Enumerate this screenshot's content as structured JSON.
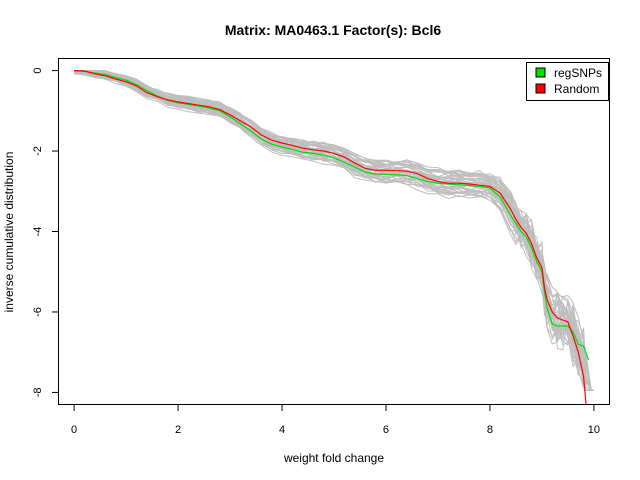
{
  "chart_data": {
    "type": "line",
    "title": "Matrix: MA0463.1 Factor(s): Bcl6",
    "xlabel": "weight fold change",
    "ylabel": "inverse cumulative distribution",
    "xlim": [
      -0.3,
      10.3
    ],
    "ylim": [
      -8.3,
      0.3
    ],
    "x_ticks": [
      0,
      2,
      4,
      6,
      8,
      10
    ],
    "y_ticks": [
      0,
      -2,
      -4,
      -6,
      -8
    ],
    "grid": false,
    "legend_position": "top-right",
    "colors": {
      "regSNPs": "#00dd00",
      "Random": "#ff0000",
      "background": "#bebebe"
    },
    "series": [
      {
        "name": "regSNPs",
        "color": "#00dd00",
        "x": [
          0,
          0.2,
          0.4,
          0.6,
          0.8,
          1.0,
          1.2,
          1.4,
          1.6,
          1.8,
          2.0,
          2.2,
          2.4,
          2.6,
          2.8,
          3.0,
          3.2,
          3.4,
          3.6,
          3.8,
          4.0,
          4.2,
          4.4,
          4.6,
          4.8,
          5.0,
          5.2,
          5.4,
          5.6,
          5.8,
          6.0,
          6.2,
          6.4,
          6.6,
          6.8,
          7.0,
          7.2,
          7.4,
          7.6,
          7.8,
          8.0,
          8.2,
          8.4,
          8.5,
          8.6,
          8.7,
          8.8,
          8.9,
          9.0,
          9.05,
          9.1,
          9.2,
          9.3,
          9.4,
          9.5,
          9.6,
          9.7,
          9.8,
          9.9
        ],
        "y": [
          0,
          -0.02,
          -0.06,
          -0.1,
          -0.17,
          -0.24,
          -0.35,
          -0.5,
          -0.63,
          -0.74,
          -0.8,
          -0.84,
          -0.88,
          -0.93,
          -1.0,
          -1.15,
          -1.32,
          -1.5,
          -1.7,
          -1.83,
          -1.9,
          -1.96,
          -2.03,
          -2.06,
          -2.1,
          -2.17,
          -2.28,
          -2.4,
          -2.52,
          -2.57,
          -2.58,
          -2.59,
          -2.61,
          -2.68,
          -2.76,
          -2.8,
          -2.82,
          -2.84,
          -2.86,
          -2.88,
          -2.92,
          -3.15,
          -3.6,
          -3.8,
          -4.0,
          -4.15,
          -4.4,
          -4.75,
          -5.0,
          -5.5,
          -5.9,
          -6.3,
          -6.35,
          -6.35,
          -6.35,
          -6.5,
          -6.8,
          -6.85,
          -7.2
        ]
      },
      {
        "name": "Random",
        "color": "#ff0000",
        "x": [
          0,
          0.2,
          0.4,
          0.6,
          0.8,
          1.0,
          1.2,
          1.4,
          1.6,
          1.8,
          2.0,
          2.2,
          2.4,
          2.6,
          2.8,
          3.0,
          3.2,
          3.4,
          3.6,
          3.8,
          4.0,
          4.2,
          4.4,
          4.6,
          4.8,
          5.0,
          5.2,
          5.4,
          5.6,
          5.8,
          6.0,
          6.2,
          6.4,
          6.6,
          6.8,
          7.0,
          7.2,
          7.4,
          7.6,
          7.8,
          8.0,
          8.2,
          8.4,
          8.5,
          8.6,
          8.7,
          8.8,
          8.9,
          9.0,
          9.05,
          9.1,
          9.2,
          9.3,
          9.4,
          9.5,
          9.6,
          9.7,
          9.8,
          9.85
        ],
        "y": [
          0,
          -0.01,
          -0.08,
          -0.13,
          -0.21,
          -0.28,
          -0.38,
          -0.55,
          -0.65,
          -0.73,
          -0.78,
          -0.82,
          -0.86,
          -0.9,
          -0.97,
          -1.1,
          -1.25,
          -1.4,
          -1.6,
          -1.73,
          -1.8,
          -1.86,
          -1.93,
          -1.97,
          -2.0,
          -2.06,
          -2.15,
          -2.3,
          -2.43,
          -2.48,
          -2.48,
          -2.49,
          -2.5,
          -2.56,
          -2.68,
          -2.76,
          -2.8,
          -2.8,
          -2.82,
          -2.85,
          -2.88,
          -3.05,
          -3.45,
          -3.7,
          -3.9,
          -4.05,
          -4.3,
          -4.65,
          -4.9,
          -5.4,
          -5.7,
          -6.0,
          -6.15,
          -6.2,
          -6.25,
          -6.6,
          -7.0,
          -7.6,
          -8.3
        ]
      }
    ],
    "background_series_count": 40
  }
}
